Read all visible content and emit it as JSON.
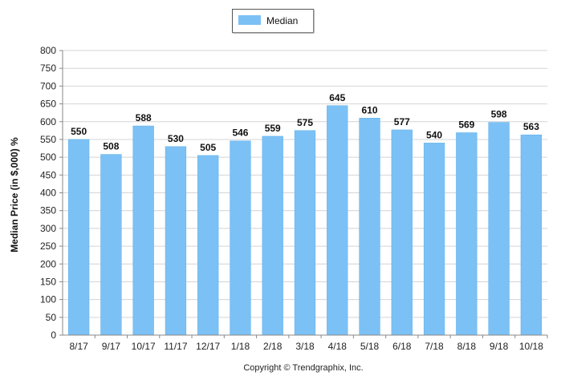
{
  "chart_data": {
    "type": "bar",
    "categories": [
      "8/17",
      "9/17",
      "10/17",
      "11/17",
      "12/17",
      "1/18",
      "2/18",
      "3/18",
      "4/18",
      "5/18",
      "6/18",
      "7/18",
      "8/18",
      "9/18",
      "10/18"
    ],
    "series": [
      {
        "name": "Median",
        "values": [
          550,
          508,
          588,
          530,
          505,
          546,
          559,
          575,
          645,
          610,
          577,
          540,
          569,
          598,
          563
        ]
      }
    ],
    "ylabel": "Median Price (in $,000) %",
    "xlabel": "",
    "ylim": [
      0,
      800
    ],
    "ytick_step": 50,
    "grid": true,
    "legend_position": "top-center",
    "bar_color": "#7cc1f5",
    "bar_edge_color": "#5aaee8",
    "copyright": "Copyright © Trendgraphix, Inc."
  }
}
